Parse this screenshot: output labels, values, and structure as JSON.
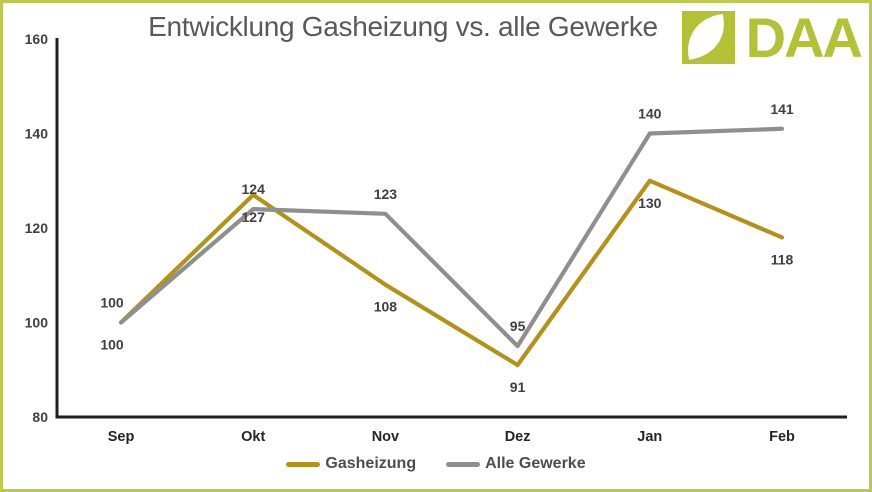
{
  "title": {
    "text": "Entwicklung Gasheizung vs. alle Gewerke"
  },
  "logo": {
    "text": "DAA",
    "icon": "leaf-in-square-icon"
  },
  "colors": {
    "brand_green": "#b2c135",
    "frame_border": "#bdc94e",
    "title_text": "#595959",
    "axis_line": "#1f1f1f",
    "gasheizung_line": "#b39317",
    "alle_gewerke_line": "#8f8f8f",
    "data_label_text": "#404040"
  },
  "chart_data": {
    "type": "line",
    "title": "Entwicklung Gasheizung vs. alle Gewerke",
    "categories": [
      "Sep",
      "Okt",
      "Nov",
      "Dez",
      "Jan",
      "Feb"
    ],
    "series": [
      {
        "name": "Gasheizung",
        "color": "#b39317",
        "values": [
          100,
          127,
          108,
          91,
          130,
          118
        ],
        "label_position": "below"
      },
      {
        "name": "Alle Gewerke",
        "color": "#8f8f8f",
        "values": [
          100,
          124,
          123,
          95,
          140,
          141
        ],
        "label_position": "above"
      }
    ],
    "xlabel": "",
    "ylabel": "",
    "ylim": [
      80,
      160
    ],
    "yticks": [
      160,
      140,
      120,
      100,
      80
    ],
    "grid": false,
    "data_labels": true,
    "legend_position": "bottom"
  }
}
